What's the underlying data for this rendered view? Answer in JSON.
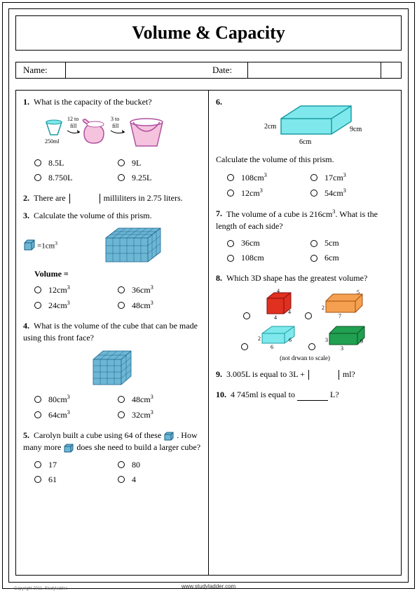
{
  "title": "Volume & Capacity",
  "nameLabel": "Name:",
  "dateLabel": "Date:",
  "footer": "www.studyladder.com",
  "copyright": "Copyright 2011, Studyladder.",
  "q1": {
    "n": "1.",
    "text": "What is the capacity of the bucket?",
    "labels": {
      "cup": "250ml",
      "t1": "12 to fill",
      "t2": "3 to fill"
    },
    "a": "8.5L",
    "b": "9L",
    "c": "8.750L",
    "d": "9.25L"
  },
  "q2": {
    "n": "2.",
    "t1": "There are",
    "t2": "milliliters in 2.75 liters."
  },
  "q3": {
    "n": "3.",
    "text": "Calculate the volume of this prism.",
    "unit": "=1cm³",
    "vol": "Volume =",
    "a": "12cm³",
    "b": "36cm³",
    "c": "24cm³",
    "d": "48cm³"
  },
  "q4": {
    "n": "4.",
    "text": "What is the volume of the cube that can be made using this front face?",
    "a": "80cm³",
    "b": "48cm³",
    "c": "64cm³",
    "d": "32cm³"
  },
  "q5": {
    "n": "5.",
    "t1": "Carolyn built a cube using 64 of these",
    "t2": ". How many more",
    "t3": "does she need to build a larger cube?",
    "a": "17",
    "b": "80",
    "c": "61",
    "d": "4"
  },
  "q6": {
    "n": "6.",
    "text": "Calculate the volume of this prism.",
    "dims": {
      "w": "6cm",
      "h": "2cm",
      "d": "9cm"
    },
    "a": "108cm³",
    "b": "17cm³",
    "c": "12cm³",
    "d": "54cm³"
  },
  "q7": {
    "n": "7.",
    "text": "The volume of a cube is 216cm³. What is the length of each side?",
    "a": "36cm",
    "b": "5cm",
    "c": "108cm",
    "d": "6cm"
  },
  "q8": {
    "n": "8.",
    "text": "Which 3D shape has the greatest volume?",
    "note": "(not drwan to scale)"
  },
  "q9": {
    "n": "9.",
    "t1": "3.005L is equal to 3L +",
    "t2": "ml?"
  },
  "q10": {
    "n": "10.",
    "t1": "4 745ml is equal to",
    "t2": "L?"
  },
  "colors": {
    "cyan": "#7fe8ec",
    "cyanStroke": "#1a9da3",
    "pink": "#f5c3de",
    "pinkStroke": "#b050a0",
    "cube": "#6db7d4",
    "cubeStroke": "#1a5f8a",
    "red": "#e03020",
    "orange": "#f5a050",
    "green": "#20a050"
  }
}
